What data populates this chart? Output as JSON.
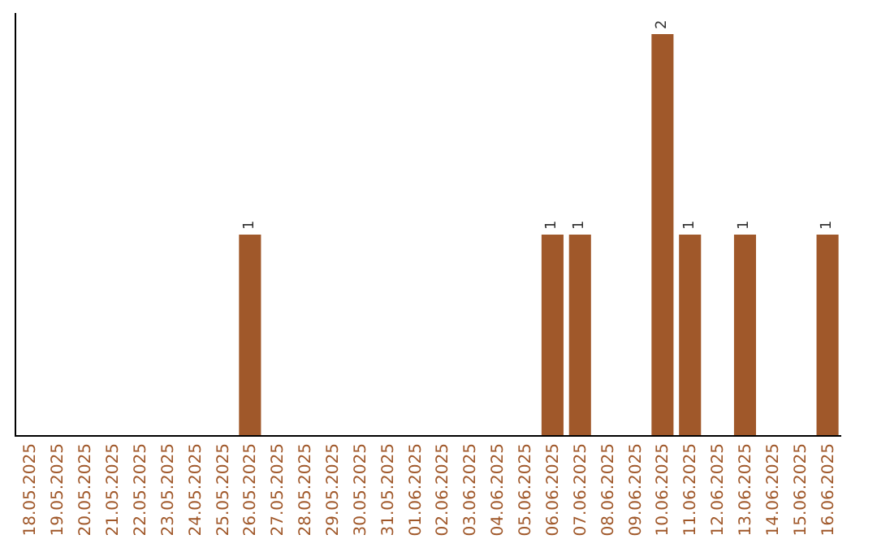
{
  "chart_data": {
    "type": "bar",
    "categories": [
      "18.05.2025",
      "19.05.2025",
      "20.05.2025",
      "21.05.2025",
      "22.05.2025",
      "23.05.2025",
      "24.05.2025",
      "25.05.2025",
      "26.05.2025",
      "27.05.2025",
      "28.05.2025",
      "29.05.2025",
      "30.05.2025",
      "31.05.2025",
      "01.06.2025",
      "02.06.2025",
      "03.06.2025",
      "04.06.2025",
      "05.06.2025",
      "06.06.2025",
      "07.06.2025",
      "08.06.2025",
      "09.06.2025",
      "10.06.2025",
      "11.06.2025",
      "12.06.2025",
      "13.06.2025",
      "14.06.2025",
      "15.06.2025",
      "16.06.2025"
    ],
    "values": [
      0,
      0,
      0,
      0,
      0,
      0,
      0,
      0,
      1,
      0,
      0,
      0,
      0,
      0,
      0,
      0,
      0,
      0,
      0,
      1,
      1,
      0,
      0,
      2,
      1,
      0,
      1,
      0,
      0,
      1
    ],
    "value_labels": [
      null,
      null,
      null,
      null,
      null,
      null,
      null,
      null,
      "1",
      null,
      null,
      null,
      null,
      null,
      null,
      null,
      null,
      null,
      null,
      "1",
      "1",
      null,
      null,
      "2",
      "1",
      null,
      "1",
      null,
      null,
      "1"
    ],
    "color": "#a0582a",
    "grid": false,
    "legend": false,
    "tick_labels": "x"
  }
}
